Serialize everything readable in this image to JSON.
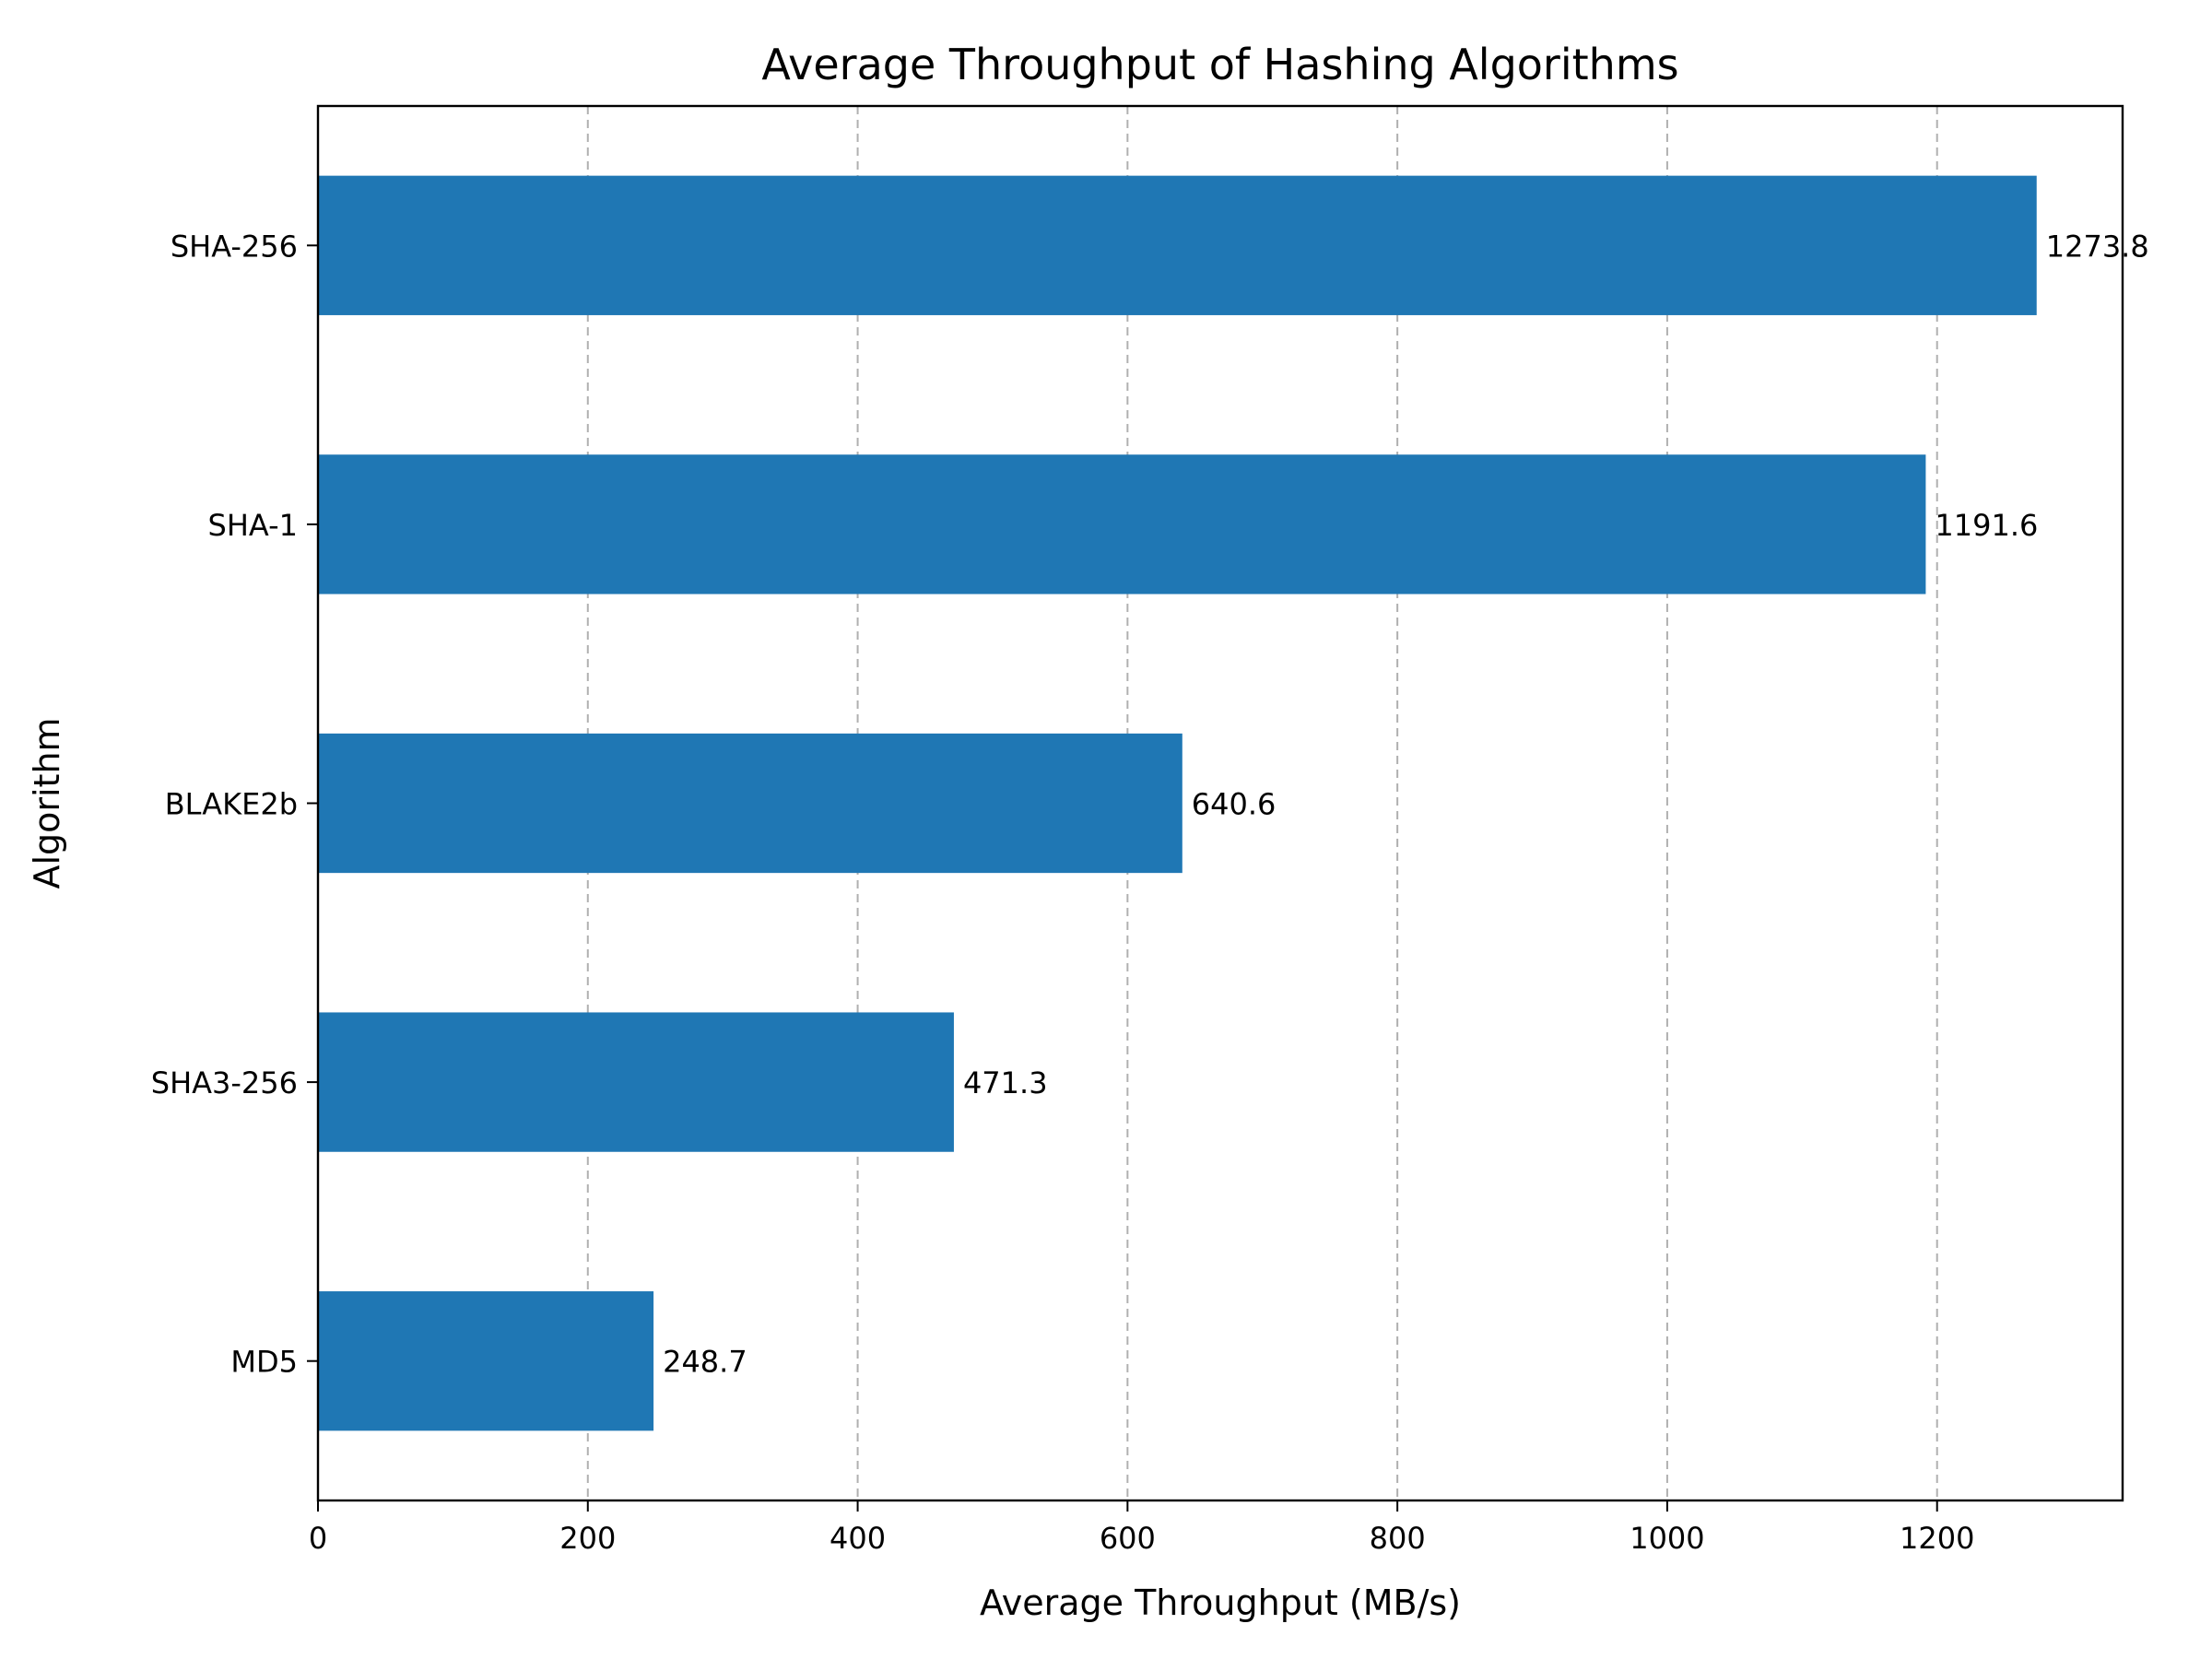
{
  "chart_data": {
    "type": "bar",
    "orientation": "horizontal",
    "title": "Average Throughput of Hashing Algorithms",
    "xlabel": "Average Throughput (MB/s)",
    "ylabel": "Algorithm",
    "categories": [
      "SHA-256",
      "SHA-1",
      "BLAKE2b",
      "SHA3-256",
      "MD5"
    ],
    "values": [
      1273.8,
      1191.6,
      640.6,
      471.3,
      248.7
    ],
    "value_labels": [
      "1273.8",
      "1191.6",
      "640.6",
      "471.3",
      "248.7"
    ],
    "xlim": [
      0,
      1337.5
    ],
    "xticks": [
      0,
      200,
      400,
      600,
      800,
      1000,
      1200
    ],
    "xtick_labels": [
      "0",
      "200",
      "400",
      "600",
      "800",
      "1000",
      "1200"
    ],
    "grid": "x-dashed",
    "bar_color": "#1f77b4",
    "grid_color": "#b0b0b0"
  }
}
